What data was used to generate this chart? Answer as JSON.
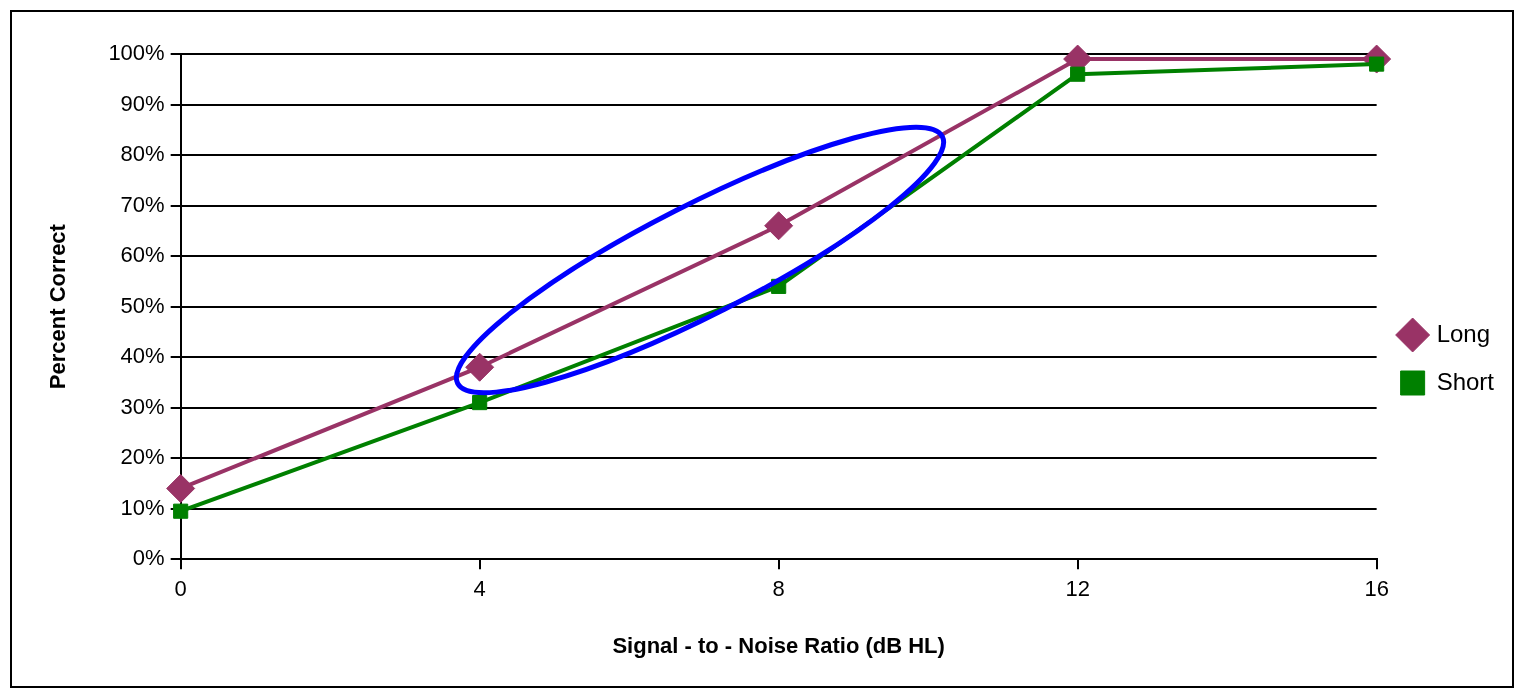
{
  "chart_data": {
    "type": "line",
    "xlabel": "Signal - to - Noise Ratio (dB HL)",
    "ylabel": "Percent Correct",
    "x": [
      0,
      4,
      8,
      12,
      16
    ],
    "series": [
      {
        "name": "Long",
        "color": "#993366",
        "values": [
          14,
          38,
          66,
          99,
          99
        ],
        "marker": "diamond"
      },
      {
        "name": "Short",
        "color": "#008000",
        "values": [
          9.5,
          31,
          54,
          96,
          98
        ],
        "marker": "square"
      }
    ],
    "xlim": [
      0,
      16
    ],
    "xticks": [
      0,
      4,
      8,
      12,
      16
    ],
    "ylim": [
      0,
      100
    ],
    "yticks": [
      {
        "value": 0,
        "label": "0%"
      },
      {
        "value": 10,
        "label": "10%"
      },
      {
        "value": 20,
        "label": "20%"
      },
      {
        "value": 30,
        "label": "30%"
      },
      {
        "value": 40,
        "label": "40%"
      },
      {
        "value": 50,
        "label": "50%"
      },
      {
        "value": 60,
        "label": "60%"
      },
      {
        "value": 70,
        "label": "70%"
      },
      {
        "value": 80,
        "label": "80%"
      },
      {
        "value": 90,
        "label": "90%"
      },
      {
        "value": 100,
        "label": "100%"
      }
    ],
    "grid": "y",
    "legend": "right",
    "line_style": "solid"
  }
}
